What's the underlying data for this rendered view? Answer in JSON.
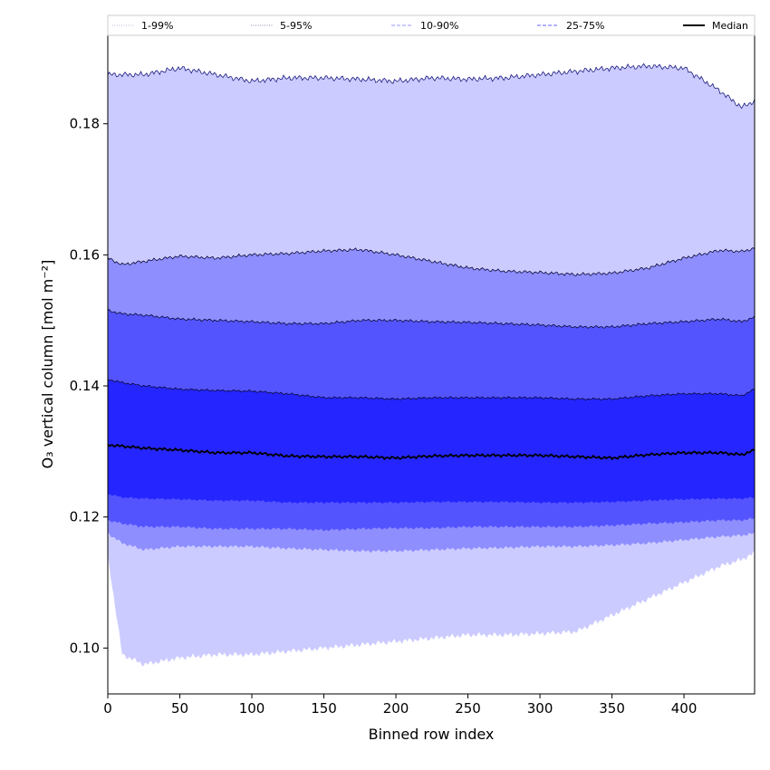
{
  "chart_data": {
    "type": "area",
    "xlabel": "Binned row index",
    "ylabel": "O₃ vertical column [mol m⁻²]",
    "xlim": [
      0,
      449
    ],
    "ylim": [
      0.093,
      0.1935
    ],
    "x_ticks": [
      0,
      50,
      100,
      150,
      200,
      250,
      300,
      350,
      400
    ],
    "y_ticks": [
      0.1,
      0.12,
      0.14,
      0.16,
      0.18
    ],
    "y_tick_labels": [
      "0.10",
      "0.12",
      "0.14",
      "0.16",
      "0.18"
    ],
    "legend_position": "top",
    "x": [
      0,
      10,
      25,
      50,
      75,
      100,
      125,
      150,
      175,
      200,
      225,
      250,
      275,
      300,
      325,
      350,
      375,
      400,
      425,
      440,
      449
    ],
    "bands": [
      {
        "name": "1-99%",
        "color": "#cccbff",
        "line_color": "#bdbdd6",
        "line_style": "dotted",
        "lower": [
          0.114,
          0.099,
          0.0975,
          0.0985,
          0.099,
          0.099,
          0.0995,
          0.1,
          0.1005,
          0.101,
          0.1015,
          0.102,
          0.102,
          0.1022,
          0.1025,
          0.105,
          0.1075,
          0.11,
          0.1125,
          0.1135,
          0.1145
        ],
        "upper": [
          0.1875,
          0.1875,
          0.1875,
          0.1885,
          0.1875,
          0.1865,
          0.187,
          0.187,
          0.1868,
          0.1865,
          0.187,
          0.1868,
          0.187,
          0.1875,
          0.188,
          0.1885,
          0.1888,
          0.1885,
          0.185,
          0.1825,
          0.1835
        ]
      },
      {
        "name": "5-95%",
        "color": "#8e8eff",
        "line_color": "#8a8ab0",
        "line_style": "dotted",
        "lower": [
          0.1175,
          0.116,
          0.115,
          0.1155,
          0.1155,
          0.1155,
          0.1152,
          0.115,
          0.1148,
          0.1148,
          0.115,
          0.1152,
          0.1153,
          0.1155,
          0.1155,
          0.1157,
          0.116,
          0.1165,
          0.117,
          0.1172,
          0.1175
        ],
        "upper": [
          0.1595,
          0.1585,
          0.159,
          0.1598,
          0.1595,
          0.16,
          0.1602,
          0.1606,
          0.1608,
          0.16,
          0.159,
          0.158,
          0.1575,
          0.1573,
          0.157,
          0.1572,
          0.158,
          0.1595,
          0.1607,
          0.1605,
          0.161
        ]
      },
      {
        "name": "10-90%",
        "color": "#5454ff",
        "line_color": "#9a9aff",
        "line_style": "dashed",
        "lower": [
          0.1195,
          0.119,
          0.1185,
          0.1185,
          0.1182,
          0.1182,
          0.1182,
          0.118,
          0.1182,
          0.1183,
          0.1183,
          0.1185,
          0.1185,
          0.1185,
          0.1185,
          0.1187,
          0.119,
          0.1192,
          0.1195,
          0.1195,
          0.1198
        ],
        "upper": [
          0.1515,
          0.151,
          0.1508,
          0.1502,
          0.15,
          0.1498,
          0.1495,
          0.1495,
          0.15,
          0.15,
          0.1498,
          0.1497,
          0.1495,
          0.1493,
          0.149,
          0.149,
          0.1495,
          0.1498,
          0.1502,
          0.1498,
          0.1505
        ]
      },
      {
        "name": "25-75%",
        "color": "#2525ff",
        "line_color": "#6666ff",
        "line_style": "dashed",
        "lower": [
          0.1235,
          0.123,
          0.1228,
          0.1227,
          0.1225,
          0.1225,
          0.1222,
          0.1222,
          0.1222,
          0.1222,
          0.1223,
          0.1223,
          0.1223,
          0.1222,
          0.1222,
          0.1223,
          0.1225,
          0.1227,
          0.1228,
          0.1228,
          0.123
        ],
        "upper": [
          0.141,
          0.1405,
          0.14,
          0.1395,
          0.1393,
          0.1392,
          0.1388,
          0.1382,
          0.1382,
          0.138,
          0.1382,
          0.1382,
          0.1382,
          0.1382,
          0.138,
          0.138,
          0.1385,
          0.1388,
          0.1388,
          0.1385,
          0.1395
        ]
      }
    ],
    "median": {
      "name": "Median",
      "color": "#000000",
      "values": [
        0.131,
        0.1308,
        0.1305,
        0.1302,
        0.1298,
        0.1298,
        0.1293,
        0.1292,
        0.1292,
        0.129,
        0.1293,
        0.1294,
        0.1294,
        0.1294,
        0.1292,
        0.129,
        0.1295,
        0.1298,
        0.1298,
        0.1295,
        0.1302
      ]
    }
  }
}
